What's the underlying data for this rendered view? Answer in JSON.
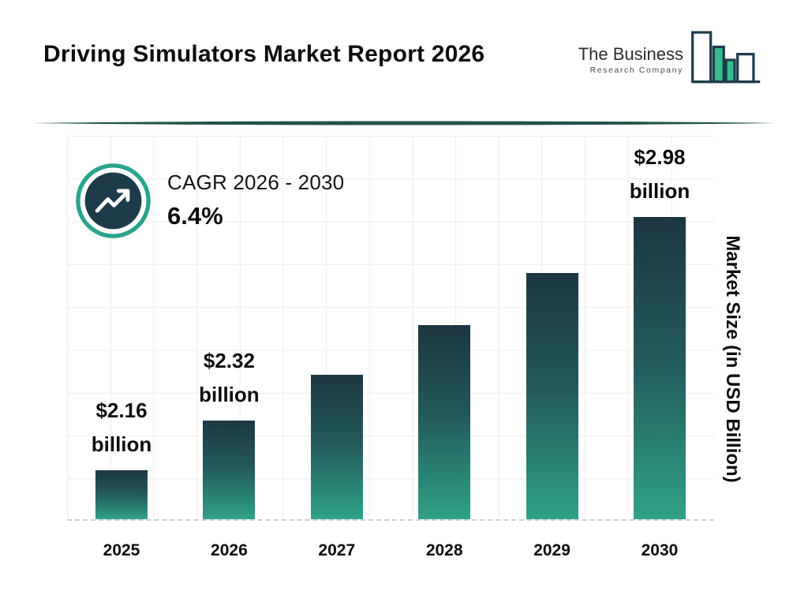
{
  "header": {
    "title": "Driving Simulators Market Report 2026",
    "logo": {
      "line1": "The Business",
      "line2": "Research Company"
    }
  },
  "cagr": {
    "label": "CAGR 2026 - 2030",
    "value": "6.4%"
  },
  "colors": {
    "navy": "#1d3b4a",
    "teal_ring": "#2aa38c",
    "logo_bar_fill": "#2fbf8f",
    "divider": "#1f544a",
    "bar_gradient_top": "#1c3742",
    "bar_gradient_bottom": "#2fa287",
    "grid": "#ececec"
  },
  "chart_data": {
    "type": "bar",
    "title": "Driving Simulators Market Report 2026",
    "ylabel": "Market Size (in USD Billion)",
    "xlabel": "",
    "ylim": [
      2.0,
      3.25
    ],
    "grid": true,
    "legend": false,
    "categories": [
      "2025",
      "2026",
      "2027",
      "2028",
      "2029",
      "2030"
    ],
    "values": [
      2.16,
      2.32,
      2.47,
      2.63,
      2.8,
      2.98
    ],
    "bars": [
      {
        "year": "2025",
        "value": 2.16,
        "label_value": "$2.16",
        "label_unit": "billion"
      },
      {
        "year": "2026",
        "value": 2.32,
        "label_value": "$2.32",
        "label_unit": "billion"
      },
      {
        "year": "2027",
        "value": 2.47
      },
      {
        "year": "2028",
        "value": 2.63
      },
      {
        "year": "2029",
        "value": 2.8
      },
      {
        "year": "2030",
        "value": 2.98,
        "label_value": "$2.98",
        "label_unit": "billion"
      }
    ]
  }
}
